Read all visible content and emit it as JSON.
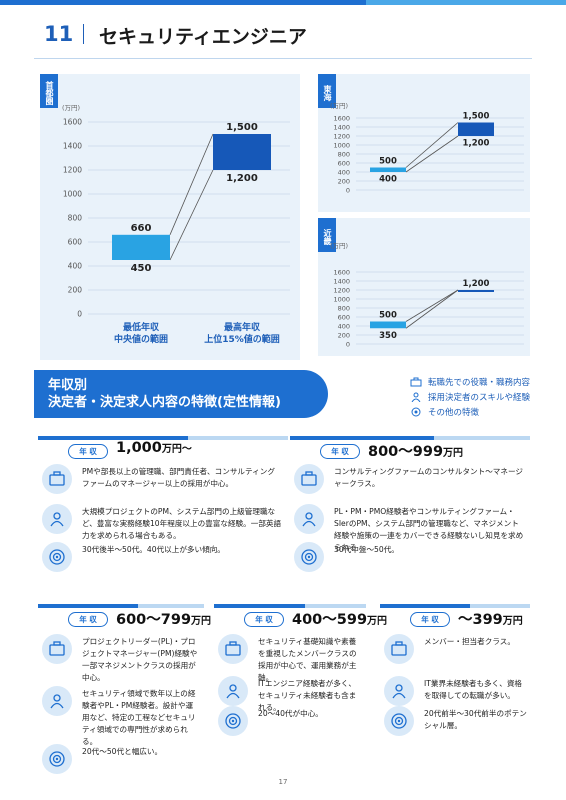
{
  "header": {
    "number": "11",
    "title": "セキュリティエンジニア"
  },
  "chart_data": [
    {
      "type": "floating-bar",
      "region": "首都圏",
      "unit": "(万円)",
      "yticks": [
        0,
        200,
        400,
        600,
        800,
        1000,
        1200,
        1400,
        1600
      ],
      "ylim": [
        0,
        1600
      ],
      "categories": [
        "最低年収\n中央値の範囲",
        "最高年収\n上位15%値の範囲"
      ],
      "bars": [
        {
          "low": 450,
          "high": 660
        },
        {
          "low": 1200,
          "high": 1500
        }
      ]
    },
    {
      "type": "floating-bar",
      "region": "東海",
      "unit": "(万円)",
      "yticks": [
        0,
        200,
        400,
        600,
        800,
        1000,
        1200,
        1400,
        1600
      ],
      "ylim": [
        0,
        1600
      ],
      "bars": [
        {
          "low": 400,
          "high": 500
        },
        {
          "low": 1200,
          "high": 1500
        }
      ]
    },
    {
      "type": "floating-bar",
      "region": "近畿",
      "unit": "(万円)",
      "yticks": [
        0,
        200,
        400,
        600,
        800,
        1000,
        1200,
        1400,
        1600
      ],
      "ylim": [
        0,
        1600
      ],
      "bars": [
        {
          "low": 350,
          "high": 500
        },
        {
          "low": 1200,
          "high": 1200
        }
      ]
    }
  ],
  "banner": {
    "line1": "年収別",
    "line2": "決定者・決定求人内容の特徴(定性情報)"
  },
  "legend": [
    "転職先での役職・職務内容",
    "採用決定者のスキルや経験",
    "その他の特徴"
  ],
  "pill_label": "年 収",
  "cards": [
    {
      "salary": "1,000",
      "suffix": "万円〜",
      "items": [
        "PMや部長以上の管理職、部門責任者、コンサルティングファームのマネージャー以上の採用が中心。",
        "大規模プロジェクトのPM、システム部門の上級管理職など、豊富な実務経験10年程度以上の豊富な経験。一部英語力を求められる場合もある。",
        "30代後半〜50代。40代以上が多い傾向。"
      ]
    },
    {
      "salary": "800〜999",
      "suffix": "万円",
      "items": [
        "コンサルティングファームのコンサルタント〜マネージャークラス。",
        "PL・PM・PMO経験者やコンサルティングファーム・SIerのPM、システム部門の管理職など、マネジメント経験や施策の一連をカバーできる経験ないし知見を求められる",
        "30代中盤〜50代。"
      ]
    },
    {
      "salary": "600〜799",
      "suffix": "万円",
      "items": [
        "プロジェクトリーダー(PL)・プロジェクトマネージャー(PM)経験や一部マネジメントクラスの採用が中心。",
        "セキュリティ領域で数年以上の経験者やPL・PM経験者。設計や運用など、特定の工程などセキュリティ領域での専門性が求められる。",
        "20代〜50代と幅広い。"
      ]
    },
    {
      "salary": "400〜599",
      "suffix": "万円",
      "items": [
        "セキュリティ基礎知識や素養を重視したメンバークラスの採用が中心で、運用業務が主軸。",
        "ITエンジニア経験者が多く、セキュリティ未経験者も含まれる。",
        "20〜40代が中心。"
      ]
    },
    {
      "salary": "〜399",
      "suffix": "万円",
      "items": [
        "メンバー・担当者クラス。",
        "IT業界未経験者も多く、資格を取得しての転職が多い。",
        "20代前半〜30代前半のポテンシャル層。"
      ]
    }
  ],
  "footer": {
    "page": "17"
  },
  "colors": {
    "primary": "#1e6fd0",
    "bar_low": "#29a3e3",
    "bar_high": "#1658b8",
    "panel": "#e9f2fa"
  }
}
